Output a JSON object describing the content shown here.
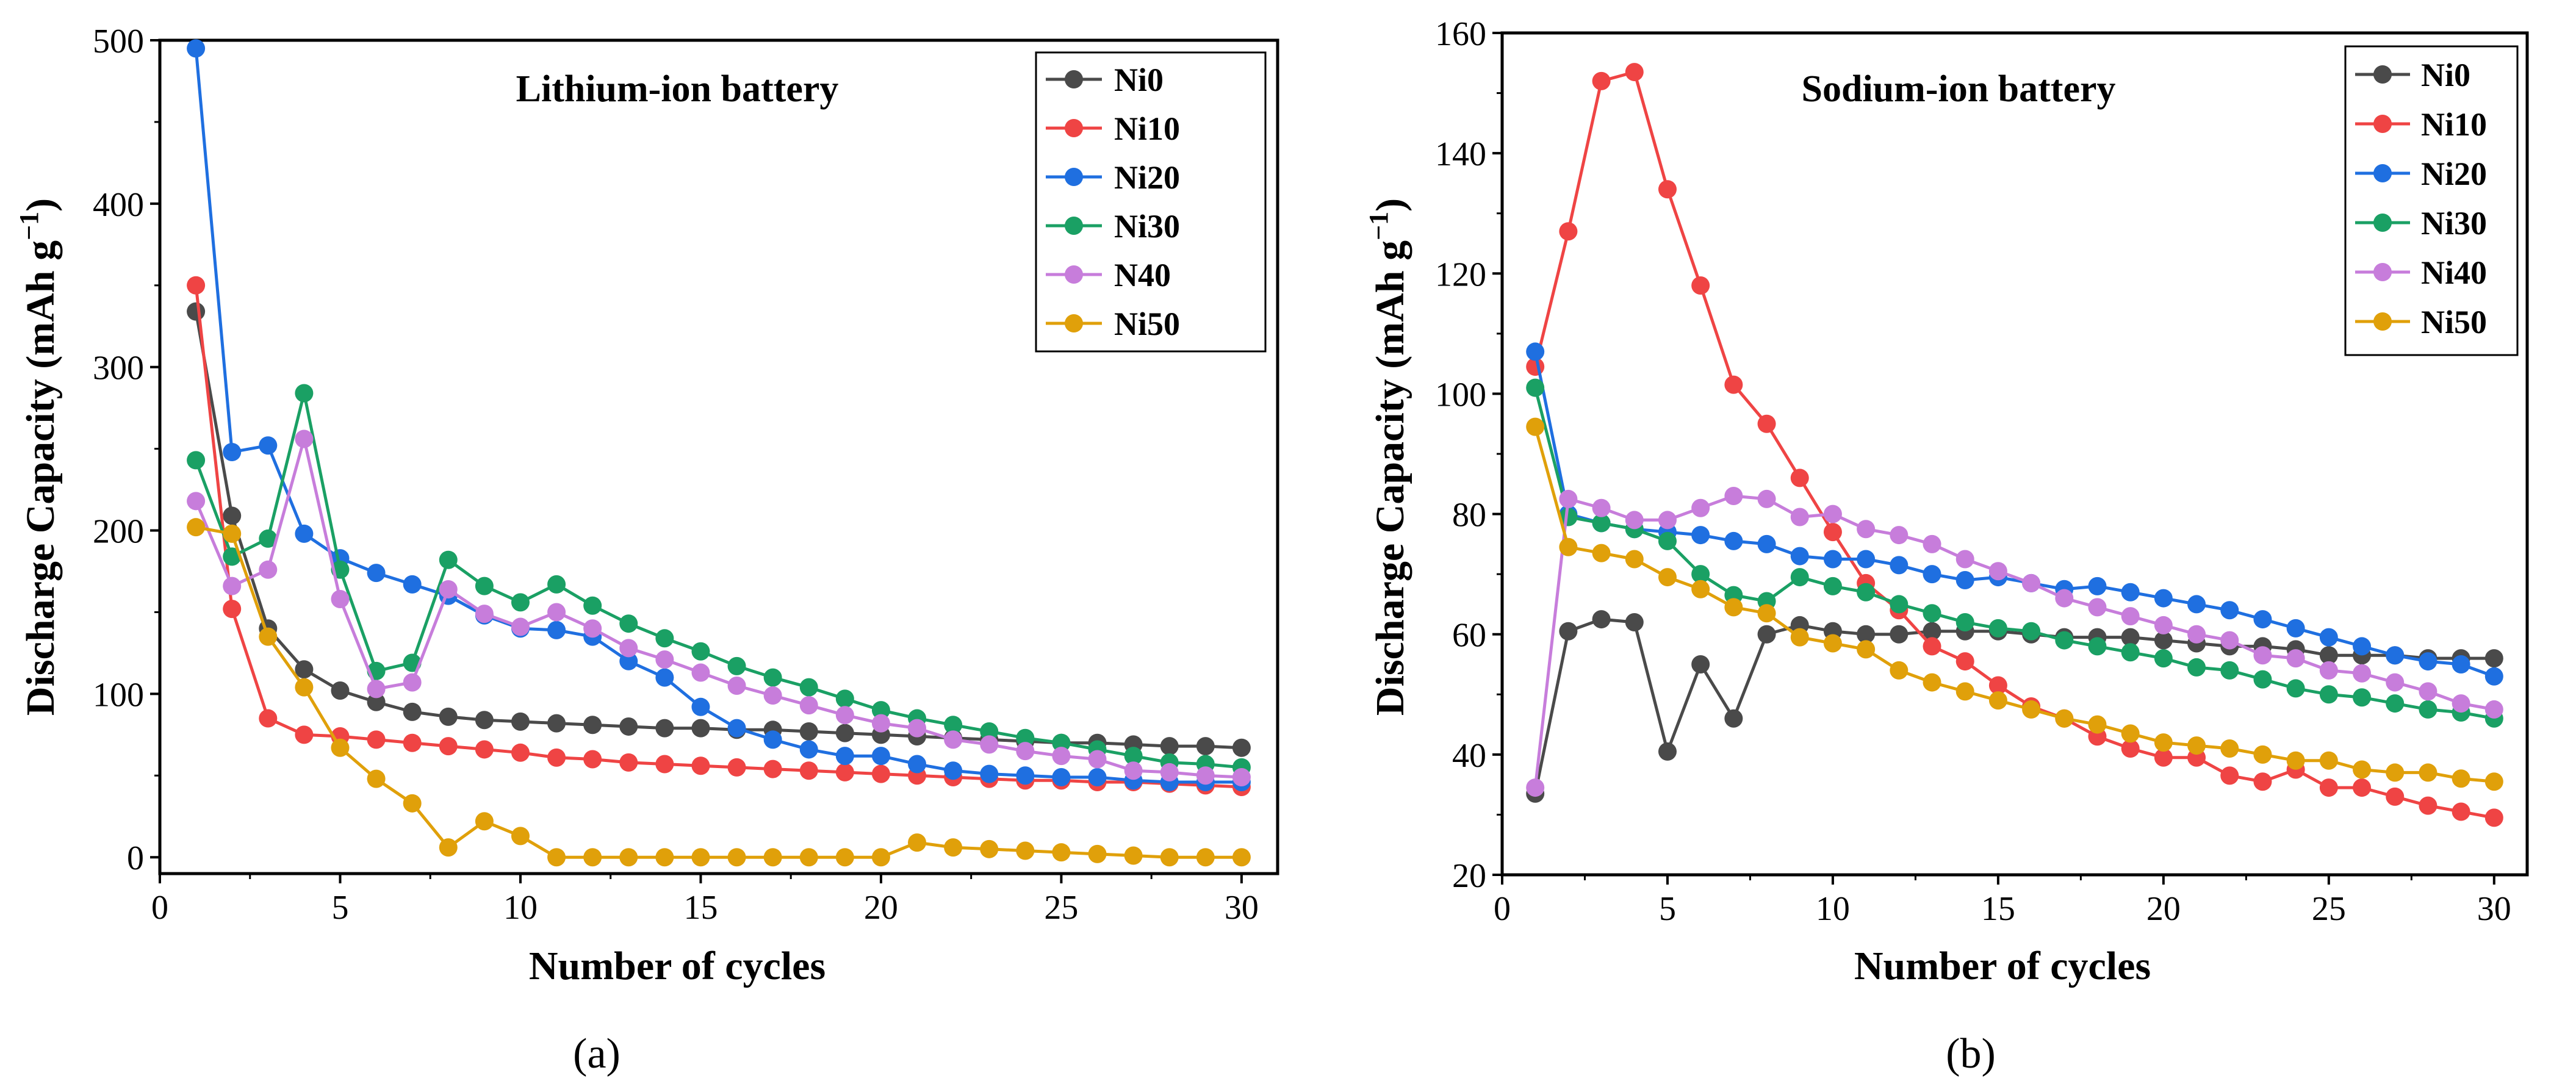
{
  "chart_data": [
    {
      "type": "line",
      "panel_label": "(a)",
      "title": "Lithium-ion battery",
      "xlabel": "Number of cycles",
      "ylabel": "Discharge Capacity (mAh g",
      "ylabel_sup": "−1",
      "ylabel_close": ")",
      "xlim": [
        0,
        31
      ],
      "ylim": [
        -10,
        500
      ],
      "xticks": [
        0,
        5,
        10,
        15,
        20,
        25,
        30
      ],
      "yticks": [
        0,
        100,
        200,
        300,
        400,
        500
      ],
      "grid": false,
      "legend_position": "top-right",
      "x": [
        1,
        2,
        3,
        4,
        5,
        6,
        7,
        8,
        9,
        10,
        11,
        12,
        13,
        14,
        15,
        16,
        17,
        18,
        19,
        20,
        21,
        22,
        23,
        24,
        25,
        26,
        27,
        28,
        29,
        30
      ],
      "series": [
        {
          "name": "Ni0",
          "color": "#4a4a4a",
          "values": [
            334,
            209,
            140,
            115,
            102,
            95,
            89,
            86,
            84,
            83,
            82,
            81,
            80,
            79,
            79,
            78,
            78,
            77,
            76,
            75,
            74,
            73,
            72,
            71,
            70,
            70,
            69,
            68,
            68,
            67
          ]
        },
        {
          "name": "Ni10",
          "color": "#ef4444",
          "values": [
            350,
            152,
            85,
            75,
            74,
            72,
            70,
            68,
            66,
            64,
            61,
            60,
            58,
            57,
            56,
            55,
            54,
            53,
            52,
            51,
            50,
            49,
            48,
            47,
            47,
            46,
            46,
            45,
            44,
            43
          ]
        },
        {
          "name": "Ni20",
          "color": "#1f6fe0",
          "values": [
            495,
            248,
            252,
            198,
            183,
            174,
            167,
            160,
            148,
            140,
            139,
            135,
            120,
            110,
            92,
            79,
            72,
            66,
            62,
            62,
            57,
            53,
            51,
            50,
            49,
            49,
            47,
            46,
            46,
            46
          ]
        },
        {
          "name": "Ni30",
          "color": "#1aa064",
          "values": [
            243,
            184,
            195,
            284,
            176,
            114,
            119,
            182,
            166,
            156,
            167,
            154,
            143,
            134,
            126,
            117,
            110,
            104,
            97,
            90,
            85,
            81,
            77,
            73,
            70,
            66,
            62,
            58,
            57,
            55
          ]
        },
        {
          "name": "N40",
          "color": "#c77ddb",
          "values": [
            218,
            166,
            176,
            256,
            158,
            103,
            107,
            164,
            149,
            141,
            150,
            140,
            128,
            121,
            113,
            105,
            99,
            93,
            87,
            82,
            79,
            72,
            69,
            65,
            62,
            60,
            53,
            52,
            50,
            49
          ]
        },
        {
          "name": "Ni50",
          "color": "#e0a00a",
          "values": [
            202,
            198,
            135,
            104,
            67,
            48,
            33,
            6,
            22,
            13,
            0,
            0,
            0,
            0,
            0,
            0,
            0,
            0,
            0,
            0,
            9,
            6,
            5,
            4,
            3,
            2,
            1,
            0,
            0,
            0
          ]
        }
      ]
    },
    {
      "type": "line",
      "panel_label": "(b)",
      "title": "Sodium-ion battery",
      "xlabel": "Number of cycles",
      "ylabel": "Discharge Capacity (mAh g",
      "ylabel_sup": "−1",
      "ylabel_close": ")",
      "xlim": [
        0,
        31
      ],
      "ylim": [
        20,
        160
      ],
      "xticks": [
        0,
        5,
        10,
        15,
        20,
        25,
        30
      ],
      "yticks": [
        20,
        40,
        60,
        80,
        100,
        120,
        140,
        160
      ],
      "grid": false,
      "legend_position": "top-right",
      "x": [
        1,
        2,
        3,
        4,
        5,
        6,
        7,
        8,
        9,
        10,
        11,
        12,
        13,
        14,
        15,
        16,
        17,
        18,
        19,
        20,
        21,
        22,
        23,
        24,
        25,
        26,
        27,
        28,
        29,
        30
      ],
      "series": [
        {
          "name": "Ni0",
          "color": "#4a4a4a",
          "values": [
            33.5,
            60.5,
            62.5,
            62,
            40.5,
            55,
            46,
            60,
            61.5,
            60.5,
            60,
            60,
            60.5,
            60.5,
            60.5,
            60,
            59.5,
            59.5,
            59.5,
            59,
            58.5,
            58,
            58,
            57.5,
            56.5,
            56.5,
            56.5,
            56,
            56,
            56
          ]
        },
        {
          "name": "Ni10",
          "color": "#ef4444",
          "values": [
            104.5,
            127,
            152,
            153.5,
            134,
            118,
            101.5,
            95,
            86,
            77,
            68.5,
            64,
            58,
            55.5,
            51.5,
            48,
            46,
            43,
            41,
            39.5,
            39.5,
            36.5,
            35.5,
            37.5,
            34.5,
            34.5,
            33,
            31.5,
            30.5,
            29.5
          ]
        },
        {
          "name": "Ni20",
          "color": "#1f6fe0",
          "values": [
            107,
            80,
            78.5,
            77.5,
            77,
            76.5,
            75.5,
            75,
            73,
            72.5,
            72.5,
            71.5,
            70,
            69,
            69.5,
            68.5,
            67.5,
            68,
            67,
            66,
            65,
            64,
            62.5,
            61,
            59.5,
            58,
            56.5,
            55.5,
            55,
            53
          ]
        },
        {
          "name": "Ni30",
          "color": "#1aa064",
          "values": [
            101,
            79.5,
            78.5,
            77.5,
            75.5,
            70,
            66.5,
            65.5,
            69.5,
            68,
            67,
            65,
            63.5,
            62,
            61,
            60.5,
            59,
            58,
            57,
            56,
            54.5,
            54,
            52.5,
            51,
            50,
            49.5,
            48.5,
            47.5,
            47,
            46
          ]
        },
        {
          "name": "Ni40",
          "color": "#c77ddb",
          "values": [
            34.5,
            82.5,
            81,
            79,
            79,
            81,
            83,
            82.5,
            79.5,
            80,
            77.5,
            76.5,
            75,
            72.5,
            70.5,
            68.5,
            66,
            64.5,
            63,
            61.5,
            60,
            59,
            56.5,
            56,
            54,
            53.5,
            52,
            50.5,
            48.5,
            47.5
          ]
        },
        {
          "name": "Ni50",
          "color": "#e0a00a",
          "values": [
            94.5,
            74.5,
            73.5,
            72.5,
            69.5,
            67.5,
            64.5,
            63.5,
            59.5,
            58.5,
            57.5,
            54,
            52,
            50.5,
            49,
            47.5,
            46,
            45,
            43.5,
            42,
            41.5,
            41,
            40,
            39,
            39,
            37.5,
            37,
            37,
            36,
            35.5
          ]
        }
      ]
    }
  ]
}
